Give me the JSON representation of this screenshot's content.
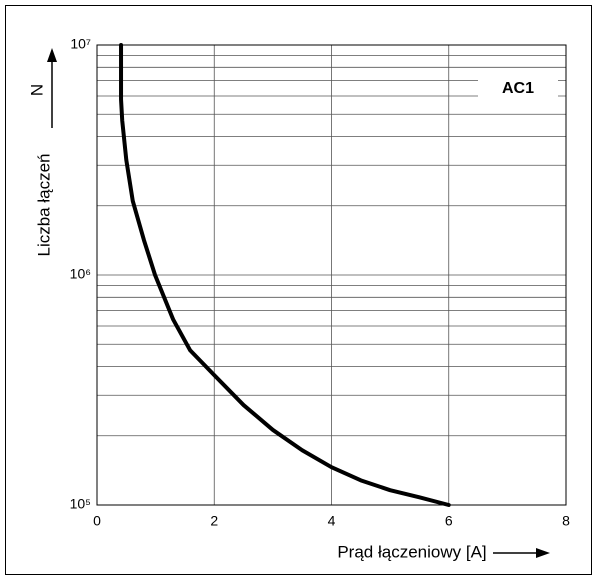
{
  "chart_data": {
    "type": "line",
    "ylabel": "Liczba łączeń",
    "ysymbol": "N",
    "xlabel": "Prąd łączeniowy [A]",
    "annotation": "AC1",
    "x": [
      0.41,
      0.41,
      0.43,
      0.5,
      0.61,
      0.8,
      0.99,
      1.3,
      1.59,
      2,
      2.5,
      3,
      3.5,
      4,
      4.5,
      5,
      5.5,
      6
    ],
    "series": [
      {
        "color": "#000000",
        "values": [
          10000000,
          5800000,
          4700000,
          3160000,
          2100000,
          1420000,
          1000000,
          640000,
          470000,
          367000,
          272000,
          212000,
          173000,
          146000,
          128000,
          116000,
          108000,
          100000
        ]
      }
    ],
    "xlim": [
      0,
      8
    ],
    "xticks": [
      0,
      2,
      4,
      6,
      8
    ],
    "ylim": [
      100000,
      10000000
    ],
    "ylog": true,
    "yticks": [
      {
        "value": 100000,
        "label": "10⁵"
      },
      {
        "value": 1000000,
        "label": "10⁶"
      },
      {
        "value": 10000000,
        "label": "10⁷"
      }
    ],
    "minor_yticks": [
      200000,
      300000,
      400000,
      500000,
      600000,
      700000,
      800000,
      900000,
      2000000,
      3000000,
      4000000,
      5000000,
      6000000,
      7000000,
      8000000,
      9000000
    ],
    "grid": true
  }
}
